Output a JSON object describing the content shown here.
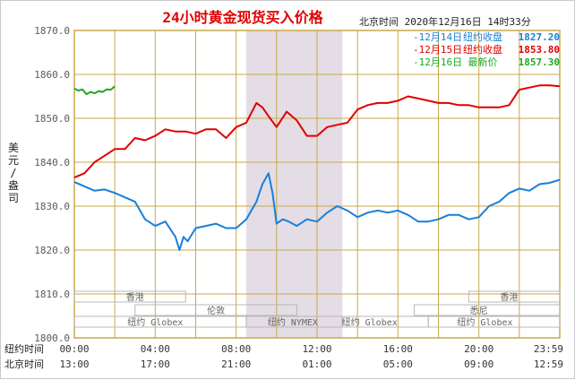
{
  "header": {
    "title": "24小时黄金现货买入价格",
    "timestamp": "北京时间  2020年12月16日 14时33分"
  },
  "legend": [
    {
      "date": "-12月14日",
      "label": "纽约收盘",
      "value": "1827.20",
      "color": "#1a7fd9"
    },
    {
      "date": "-12月15日",
      "label": "纽约收盘",
      "value": "1853.80",
      "color": "#e00000"
    },
    {
      "date": "-12月16日",
      "label": "最新价",
      "value": "1857.30",
      "color": "#1fa81f"
    }
  ],
  "yaxis_label": "美元/盎司",
  "time_rows": {
    "ny_label": "纽约时间",
    "bj_label": "北京时间",
    "ny_ticks": [
      "00:00",
      "04:00",
      "08:00",
      "12:00",
      "16:00",
      "20:00",
      "23:59"
    ],
    "bj_ticks": [
      "13:00",
      "17:00",
      "21:00",
      "01:00",
      "05:00",
      "09:00",
      "12:59"
    ]
  },
  "sessions": {
    "hongkong": "香港",
    "london": "伦敦",
    "ny_globex": "纽约 Globex",
    "ny_nymex": "纽约 NYMEX",
    "sydney": "悉尼"
  },
  "colors": {
    "grid": "#c8a94b",
    "axis_text": "#5a5a5a",
    "title": "#e00000",
    "shade": "#e4dde5",
    "series_1214": "#1a7fd9",
    "series_1215": "#e00000",
    "series_1216": "#1fa81f"
  },
  "chart_data": {
    "type": "line",
    "ylim": [
      1800,
      1870
    ],
    "yticks": [
      "1870.0",
      "1860.0",
      "1850.0",
      "1840.0",
      "1830.0",
      "1820.0",
      "1810.0",
      "1800.0"
    ],
    "x_unit": "hours since 00:00 New York time",
    "xlim": [
      0,
      24
    ],
    "series": [
      {
        "name": "12月14日",
        "color": "#1a7fd9",
        "x": [
          0,
          0.5,
          1,
          1.5,
          2,
          2.5,
          3,
          3.5,
          4,
          4.5,
          5,
          5.2,
          5.4,
          5.6,
          5.8,
          6,
          6.5,
          7,
          7.5,
          8,
          8.5,
          9,
          9.3,
          9.6,
          9.8,
          10,
          10.3,
          10.6,
          11,
          11.5,
          12,
          12.5,
          13,
          13.5,
          14,
          14.5,
          15,
          15.5,
          16,
          16.5,
          17,
          17.5,
          18,
          18.5,
          19,
          19.5,
          20,
          20.5,
          21,
          21.5,
          22,
          22.5,
          23,
          23.5,
          24
        ],
        "y": [
          1835.5,
          1834.5,
          1833.5,
          1833.8,
          1833,
          1832,
          1831,
          1827,
          1825.5,
          1826.5,
          1823,
          1820,
          1823,
          1822,
          1823.5,
          1825,
          1825.5,
          1826,
          1825,
          1825,
          1827,
          1831,
          1835,
          1837.5,
          1833,
          1826,
          1827,
          1826.5,
          1825.5,
          1827,
          1826.5,
          1828.5,
          1830,
          1829,
          1827.5,
          1828.5,
          1829,
          1828.5,
          1829,
          1828,
          1826.5,
          1826.5,
          1827,
          1828,
          1828,
          1827,
          1827.5,
          1830,
          1831,
          1833,
          1834,
          1833.5,
          1835,
          1835.3,
          1836
        ]
      },
      {
        "name": "12月15日",
        "color": "#e00000",
        "x": [
          0,
          0.5,
          1,
          1.5,
          2,
          2.5,
          3,
          3.5,
          4,
          4.5,
          5,
          5.5,
          6,
          6.5,
          7,
          7.5,
          8,
          8.5,
          9,
          9.3,
          9.6,
          10,
          10.5,
          11,
          11.5,
          12,
          12.5,
          13,
          13.5,
          14,
          14.5,
          15,
          15.5,
          16,
          16.5,
          17,
          17.5,
          18,
          18.5,
          19,
          19.5,
          20,
          20.5,
          21,
          21.5,
          22,
          22.5,
          23,
          23.5,
          24
        ],
        "y": [
          1836.5,
          1837.5,
          1840,
          1841.5,
          1843,
          1843,
          1845.5,
          1845,
          1846,
          1847.5,
          1847,
          1847,
          1846.5,
          1847.5,
          1847.5,
          1845.5,
          1848,
          1849,
          1853.5,
          1852.5,
          1850.5,
          1848,
          1851.5,
          1849.5,
          1846,
          1846,
          1848,
          1848.5,
          1849,
          1852,
          1853,
          1853.5,
          1853.5,
          1854,
          1855,
          1854.5,
          1854,
          1853.5,
          1853.5,
          1853,
          1853,
          1852.5,
          1852.5,
          1852.5,
          1853,
          1856.5,
          1857,
          1857.5,
          1857.5,
          1857.3
        ]
      },
      {
        "name": "12月16日",
        "color": "#1fa81f",
        "x": [
          0,
          0.2,
          0.4,
          0.6,
          0.8,
          1,
          1.2,
          1.4,
          1.6,
          1.8,
          2
        ],
        "y": [
          1856.8,
          1856.3,
          1856.6,
          1855.5,
          1856,
          1855.7,
          1856.2,
          1856,
          1856.6,
          1856.5,
          1857.3
        ]
      }
    ]
  }
}
